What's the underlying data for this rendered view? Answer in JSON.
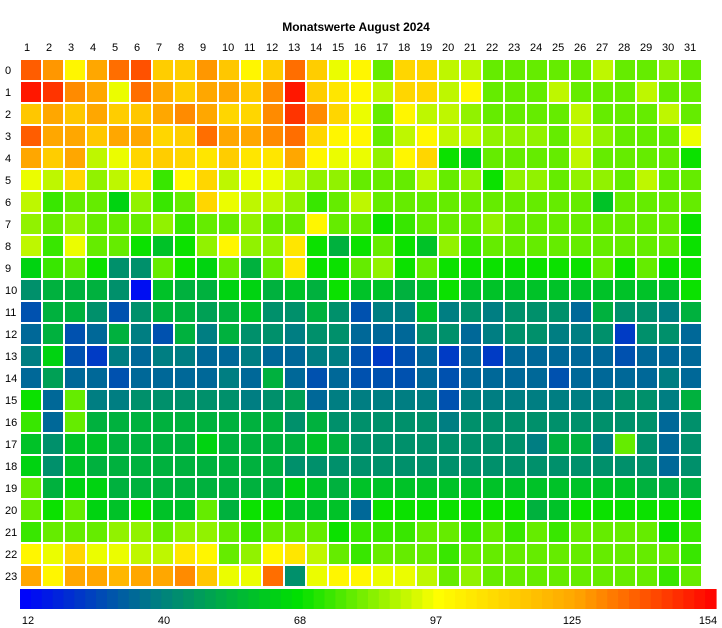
{
  "chart_data": {
    "type": "heatmap",
    "title": "Monatswerte August 2024",
    "x_labels": [
      "1",
      "2",
      "3",
      "4",
      "5",
      "6",
      "7",
      "8",
      "9",
      "10",
      "11",
      "12",
      "13",
      "14",
      "15",
      "16",
      "17",
      "18",
      "19",
      "20",
      "21",
      "22",
      "23",
      "24",
      "25",
      "26",
      "27",
      "28",
      "29",
      "30",
      "31"
    ],
    "y_labels": [
      "0",
      "1",
      "2",
      "3",
      "4",
      "5",
      "6",
      "7",
      "8",
      "9",
      "10",
      "11",
      "12",
      "13",
      "14",
      "15",
      "16",
      "17",
      "18",
      "19",
      "20",
      "21",
      "22",
      "23"
    ],
    "color_scale": {
      "min": 12,
      "max": 154,
      "ticks": [
        "12",
        "40",
        "68",
        "97",
        "125",
        "154"
      ],
      "stops": [
        "#0000ff",
        "#008080",
        "#00e000",
        "#ffff00",
        "#ffa500",
        "#ff0000"
      ]
    },
    "values": [
      [
        138,
        128,
        100,
        125,
        135,
        140,
        113,
        113,
        128,
        115,
        100,
        113,
        135,
        113,
        95,
        100,
        80,
        110,
        110,
        90,
        90,
        80,
        80,
        80,
        80,
        80,
        90,
        80,
        80,
        85,
        80
      ],
      [
        150,
        145,
        130,
        125,
        95,
        135,
        125,
        113,
        125,
        125,
        113,
        130,
        150,
        113,
        105,
        100,
        90,
        110,
        110,
        90,
        100,
        80,
        80,
        80,
        90,
        80,
        80,
        80,
        90,
        80,
        80
      ],
      [
        115,
        125,
        115,
        125,
        113,
        115,
        125,
        130,
        125,
        110,
        110,
        130,
        145,
        130,
        110,
        95,
        80,
        100,
        90,
        90,
        85,
        80,
        80,
        80,
        80,
        90,
        80,
        80,
        80,
        90,
        80
      ],
      [
        138,
        125,
        125,
        115,
        125,
        125,
        110,
        113,
        135,
        125,
        125,
        130,
        135,
        110,
        100,
        100,
        80,
        90,
        100,
        90,
        90,
        85,
        85,
        85,
        80,
        90,
        85,
        80,
        80,
        80,
        95
      ],
      [
        125,
        113,
        125,
        90,
        95,
        110,
        113,
        110,
        105,
        113,
        105,
        105,
        125,
        100,
        95,
        95,
        85,
        100,
        110,
        70,
        65,
        80,
        80,
        80,
        80,
        90,
        80,
        80,
        80,
        80,
        70
      ],
      [
        95,
        90,
        110,
        85,
        90,
        105,
        75,
        100,
        110,
        90,
        95,
        95,
        90,
        85,
        85,
        80,
        80,
        80,
        90,
        80,
        85,
        70,
        85,
        85,
        80,
        85,
        85,
        80,
        90,
        80,
        80
      ],
      [
        90,
        75,
        80,
        80,
        65,
        85,
        75,
        80,
        110,
        95,
        90,
        90,
        85,
        75,
        80,
        90,
        80,
        80,
        80,
        80,
        80,
        80,
        80,
        80,
        80,
        80,
        60,
        80,
        80,
        80,
        80
      ],
      [
        85,
        80,
        85,
        80,
        80,
        80,
        85,
        75,
        80,
        80,
        85,
        80,
        80,
        100,
        80,
        80,
        70,
        75,
        80,
        80,
        80,
        85,
        80,
        80,
        80,
        80,
        80,
        80,
        80,
        80,
        70
      ],
      [
        90,
        75,
        95,
        80,
        80,
        70,
        60,
        70,
        85,
        100,
        85,
        85,
        105,
        70,
        55,
        70,
        80,
        70,
        60,
        85,
        75,
        80,
        80,
        80,
        80,
        80,
        80,
        80,
        80,
        80,
        70
      ],
      [
        65,
        75,
        80,
        70,
        45,
        45,
        80,
        70,
        65,
        80,
        55,
        80,
        105,
        70,
        70,
        80,
        85,
        70,
        80,
        70,
        70,
        70,
        70,
        70,
        70,
        70,
        80,
        70,
        80,
        70,
        70
      ],
      [
        45,
        55,
        55,
        55,
        45,
        15,
        60,
        55,
        55,
        65,
        65,
        55,
        60,
        55,
        70,
        60,
        60,
        55,
        60,
        70,
        60,
        60,
        60,
        60,
        60,
        60,
        60,
        60,
        60,
        60,
        70
      ],
      [
        30,
        55,
        55,
        45,
        30,
        45,
        55,
        55,
        50,
        55,
        60,
        45,
        45,
        55,
        45,
        30,
        40,
        40,
        60,
        40,
        45,
        40,
        45,
        45,
        45,
        35,
        55,
        45,
        45,
        40,
        55
      ],
      [
        35,
        55,
        30,
        35,
        55,
        40,
        30,
        55,
        40,
        55,
        45,
        45,
        40,
        45,
        45,
        35,
        35,
        35,
        45,
        45,
        35,
        40,
        45,
        45,
        40,
        40,
        45,
        25,
        45,
        45,
        35
      ],
      [
        40,
        65,
        30,
        25,
        40,
        35,
        40,
        40,
        35,
        35,
        40,
        35,
        35,
        40,
        40,
        30,
        25,
        30,
        35,
        25,
        35,
        25,
        35,
        35,
        35,
        35,
        35,
        30,
        35,
        35,
        35
      ],
      [
        35,
        50,
        35,
        35,
        30,
        35,
        35,
        35,
        35,
        40,
        35,
        55,
        35,
        30,
        35,
        30,
        30,
        30,
        35,
        30,
        35,
        35,
        35,
        35,
        30,
        35,
        35,
        35,
        35,
        40,
        35
      ],
      [
        70,
        35,
        80,
        40,
        40,
        45,
        45,
        45,
        45,
        45,
        40,
        45,
        50,
        35,
        40,
        40,
        40,
        40,
        40,
        30,
        40,
        40,
        40,
        40,
        40,
        40,
        40,
        45,
        45,
        40,
        55
      ],
      [
        75,
        35,
        80,
        55,
        55,
        55,
        55,
        55,
        55,
        55,
        55,
        55,
        45,
        55,
        45,
        45,
        45,
        45,
        45,
        40,
        45,
        45,
        45,
        45,
        45,
        45,
        45,
        45,
        45,
        35,
        45
      ],
      [
        60,
        45,
        60,
        60,
        55,
        55,
        55,
        55,
        65,
        55,
        55,
        55,
        55,
        60,
        55,
        45,
        45,
        45,
        45,
        45,
        45,
        45,
        45,
        40,
        55,
        55,
        40,
        80,
        45,
        35,
        45
      ],
      [
        65,
        45,
        60,
        55,
        55,
        55,
        55,
        55,
        55,
        55,
        55,
        55,
        45,
        45,
        45,
        45,
        45,
        45,
        45,
        45,
        45,
        45,
        45,
        45,
        45,
        45,
        45,
        45,
        45,
        35,
        45
      ],
      [
        80,
        55,
        65,
        65,
        55,
        55,
        55,
        55,
        55,
        55,
        55,
        55,
        65,
        60,
        55,
        60,
        60,
        60,
        60,
        60,
        60,
        60,
        60,
        60,
        60,
        60,
        60,
        60,
        55,
        55,
        55
      ],
      [
        80,
        70,
        80,
        65,
        60,
        70,
        60,
        60,
        80,
        55,
        70,
        70,
        60,
        60,
        60,
        35,
        70,
        70,
        70,
        70,
        70,
        70,
        70,
        55,
        60,
        70,
        70,
        70,
        70,
        70,
        70
      ],
      [
        75,
        80,
        80,
        80,
        85,
        85,
        80,
        85,
        85,
        80,
        75,
        80,
        80,
        80,
        70,
        75,
        75,
        75,
        80,
        80,
        75,
        80,
        75,
        80,
        75,
        80,
        80,
        80,
        80,
        70,
        75
      ],
      [
        100,
        95,
        110,
        95,
        95,
        90,
        90,
        105,
        100,
        80,
        85,
        100,
        105,
        90,
        80,
        75,
        80,
        80,
        80,
        75,
        80,
        80,
        80,
        80,
        80,
        80,
        80,
        80,
        80,
        80,
        75
      ],
      [
        125,
        100,
        125,
        125,
        120,
        125,
        125,
        130,
        115,
        95,
        95,
        135,
        45,
        95,
        100,
        100,
        95,
        95,
        90,
        80,
        85,
        80,
        80,
        80,
        80,
        80,
        80,
        80,
        80,
        75,
        80
      ]
    ]
  }
}
